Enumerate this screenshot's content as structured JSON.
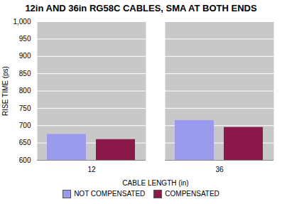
{
  "chart_data": {
    "type": "bar",
    "title": "12in AND 36in RG58C CABLES, SMA AT BOTH ENDS",
    "xlabel": "CABLE LENGTH (in)",
    "ylabel": "RISE TIME (ps)",
    "categories": [
      "12",
      "36"
    ],
    "series": [
      {
        "name": "NOT COMPENSATED",
        "color": "#9999ee",
        "values": [
          675,
          715
        ]
      },
      {
        "name": "COMPENSATED",
        "color": "#8b1a4a",
        "values": [
          660,
          695
        ]
      }
    ],
    "ylim": [
      600,
      1000
    ],
    "yticks": [
      600,
      650,
      700,
      750,
      800,
      850,
      900,
      950,
      1000
    ],
    "grid": true,
    "legend": "bottom"
  }
}
